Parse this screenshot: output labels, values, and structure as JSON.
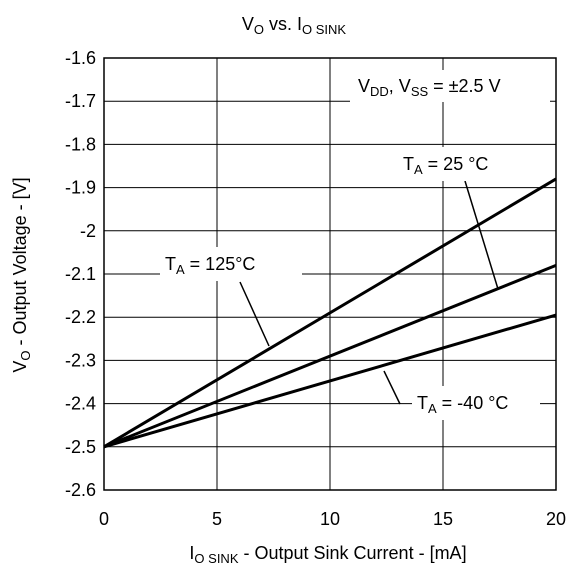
{
  "chart_data": {
    "type": "line",
    "title": {
      "main": "V",
      "main_sub": "O",
      "mid": " vs. I",
      "end_sub": "O SINK"
    },
    "xlabel": {
      "main": "I",
      "sub": "O SINK",
      "rest": " - Output Sink Current - [mA]"
    },
    "ylabel": {
      "main": "V",
      "sub": "O",
      "rest": " - Output Voltage - [V]"
    },
    "xlim": [
      0,
      20
    ],
    "ylim": [
      -2.6,
      -1.6
    ],
    "xticks": [
      "0",
      "5",
      "10",
      "15",
      "20"
    ],
    "yticks": [
      "-1.6",
      "-1.7",
      "-1.8",
      "-1.9",
      "-2",
      "-2.1",
      "-2.2",
      "-2.3",
      "-2.4",
      "-2.5",
      "-2.6"
    ],
    "grid": true,
    "annotation": {
      "v1": "V",
      "v1_sub": "DD",
      "v2": ", V",
      "v2_sub": "SS",
      "rest": " = ±2.5 V"
    },
    "series": [
      {
        "label": {
          "main": "T",
          "sub": "A",
          "rest": " = 125°C"
        },
        "x": [
          0,
          20
        ],
        "y": [
          -2.5,
          -1.88
        ]
      },
      {
        "label": {
          "main": "T",
          "sub": "A",
          "rest": " = 25 °C"
        },
        "x": [
          0,
          20
        ],
        "y": [
          -2.5,
          -2.08
        ]
      },
      {
        "label": {
          "main": "T",
          "sub": "A",
          "rest": " = -40 °C"
        },
        "x": [
          0,
          20
        ],
        "y": [
          -2.5,
          -2.195
        ]
      }
    ]
  }
}
